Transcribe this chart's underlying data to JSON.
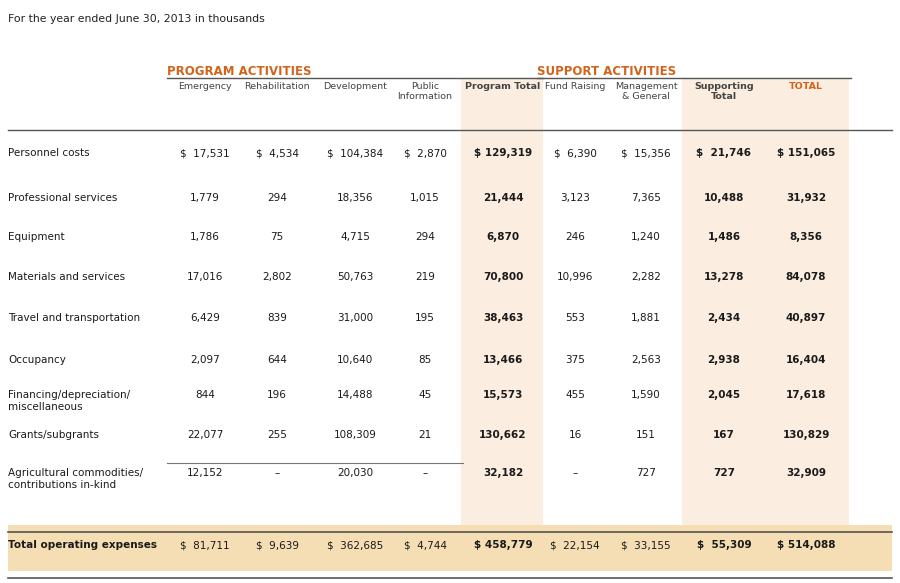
{
  "title": "For the year ended June 30, 2013 in thousands",
  "section_program": "PROGRAM ACTIVITIES",
  "section_support": "SUPPORT ACTIVITIES",
  "col_headers": [
    "Emergency",
    "Rehabilitation",
    "Development",
    "Public\nInformation",
    "Program Total",
    "Fund Raising",
    "Management\n& General",
    "Supporting\nTotal",
    "TOTAL"
  ],
  "row_labels": [
    "Personnel costs",
    "Professional services",
    "Equipment",
    "Materials and services",
    "Travel and transportation",
    "Occupancy",
    "Financing/depreciation/\nmiscellaneous",
    "Grants/subgrants",
    "Agricultural commodities/\ncontributions in-kind",
    "Total operating expenses"
  ],
  "data": [
    [
      "$  17,531",
      "$  4,534",
      "$  104,384",
      "$  2,870",
      "$ 129,319",
      "$  6,390",
      "$  15,356",
      "$  21,746",
      "$ 151,065"
    ],
    [
      "1,779",
      "294",
      "18,356",
      "1,015",
      "21,444",
      "3,123",
      "7,365",
      "10,488",
      "31,932"
    ],
    [
      "1,786",
      "75",
      "4,715",
      "294",
      "6,870",
      "246",
      "1,240",
      "1,486",
      "8,356"
    ],
    [
      "17,016",
      "2,802",
      "50,763",
      "219",
      "70,800",
      "10,996",
      "2,282",
      "13,278",
      "84,078"
    ],
    [
      "6,429",
      "839",
      "31,000",
      "195",
      "38,463",
      "553",
      "1,881",
      "2,434",
      "40,897"
    ],
    [
      "2,097",
      "644",
      "10,640",
      "85",
      "13,466",
      "375",
      "2,563",
      "2,938",
      "16,404"
    ],
    [
      "844",
      "196",
      "14,488",
      "45",
      "15,573",
      "455",
      "1,590",
      "2,045",
      "17,618"
    ],
    [
      "22,077",
      "255",
      "108,309",
      "21",
      "130,662",
      "16",
      "151",
      "167",
      "130,829"
    ],
    [
      "12,152",
      "–",
      "20,030",
      "–",
      "32,182",
      "–",
      "727",
      "727",
      "32,909"
    ],
    [
      "$  81,711",
      "$  9,639",
      "$  362,685",
      "$  4,744",
      "$ 458,779",
      "$  22,154",
      "$  33,155",
      "$  55,309",
      "$ 514,088"
    ]
  ],
  "bg_color_main": "#ffffff",
  "bg_color_highlight": "#fbeee0",
  "bg_color_total_row": "#f5deb3",
  "color_orange": "#d4631a",
  "color_dark": "#1a1a1a",
  "color_header_text": "#444444",
  "col_bold_idx": [
    4,
    7,
    8
  ]
}
